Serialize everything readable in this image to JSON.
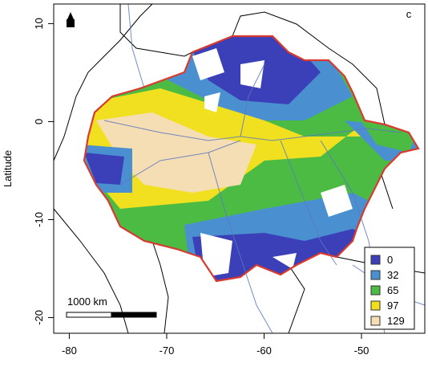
{
  "map": {
    "panel_label": "c",
    "y_axis_label": "Latitude",
    "xlim": [
      -81.6,
      -43.5
    ],
    "ylim": [
      -21.6,
      12
    ],
    "xticks": [
      -80,
      -70,
      -60,
      -50
    ],
    "yticks": [
      10,
      0,
      -10,
      -20
    ],
    "legend": [
      {
        "label": "0",
        "color": "#3b3fb8"
      },
      {
        "label": "32",
        "color": "#4a90d0"
      },
      {
        "label": "65",
        "color": "#4cbb44"
      },
      {
        "label": "97",
        "color": "#f0e020"
      },
      {
        "label": "129",
        "color": "#f5deb3"
      }
    ],
    "scale_bar": "1000 km"
  }
}
